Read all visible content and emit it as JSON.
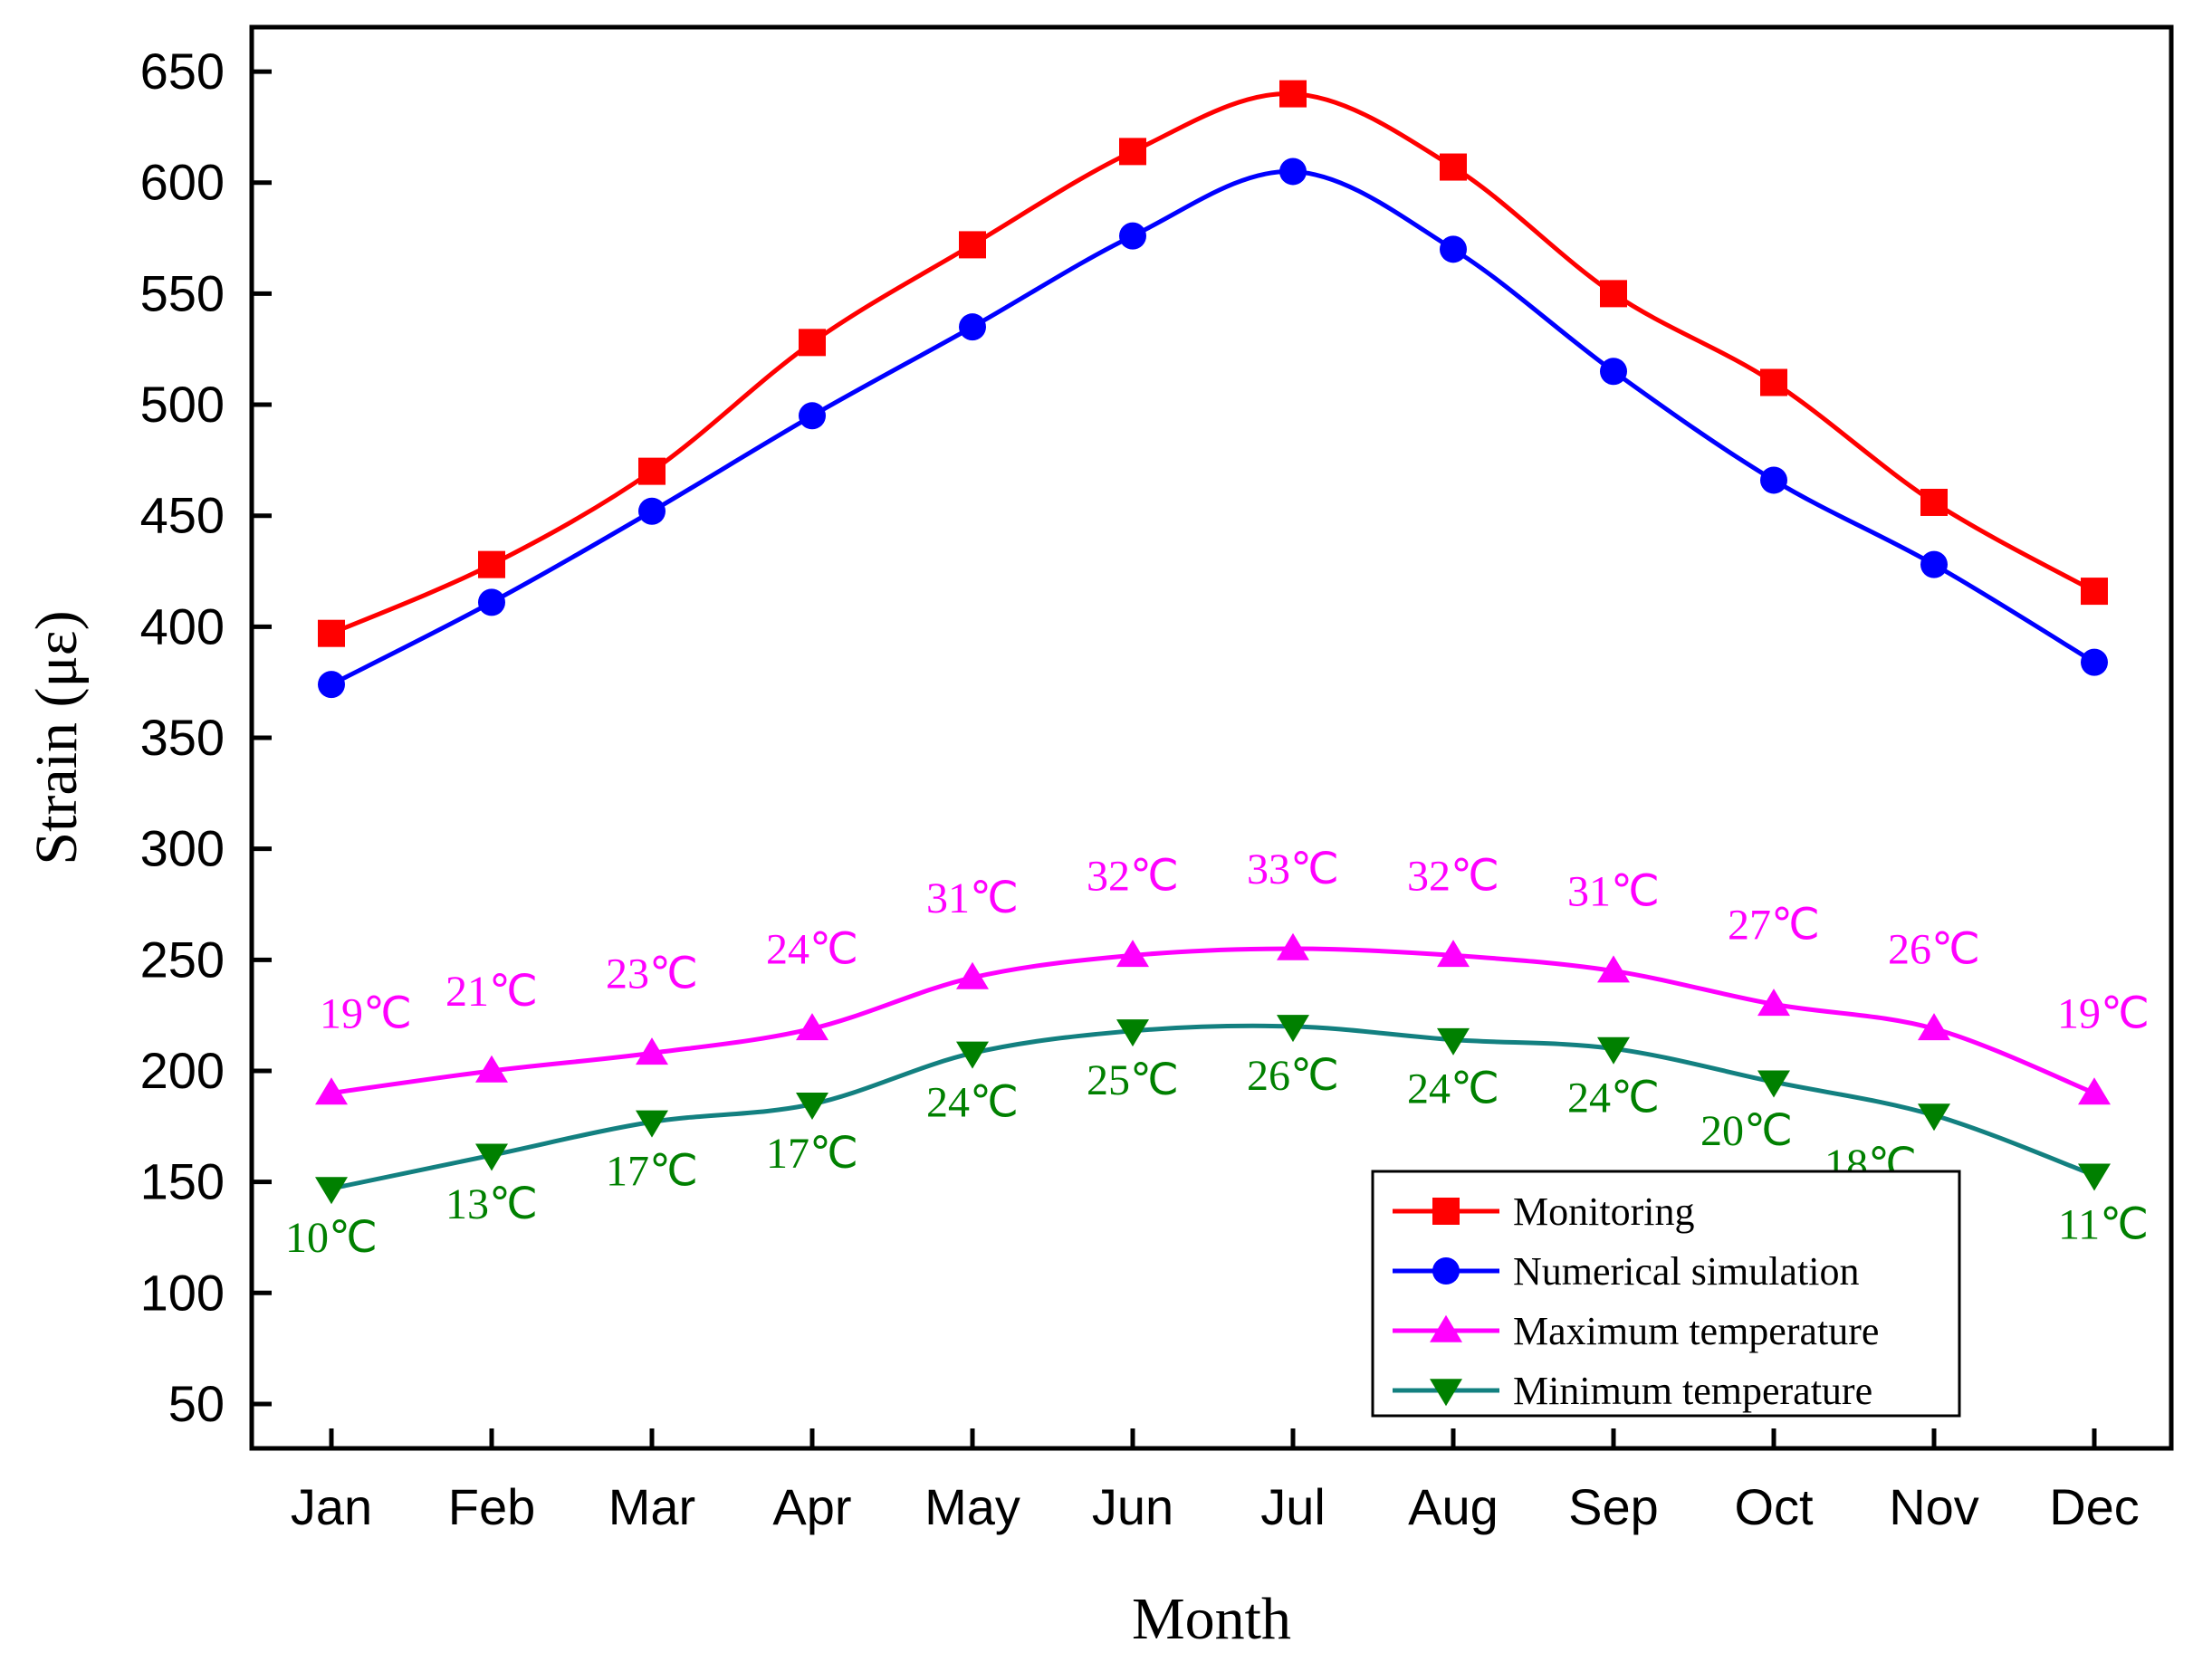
{
  "chart_data": {
    "type": "line",
    "xlabel": "Month",
    "ylabel": "Strain (με)",
    "categories": [
      "Jan",
      "Feb",
      "Mar",
      "Apr",
      "May",
      "Jun",
      "Jul",
      "Aug",
      "Sep",
      "Oct",
      "Nov",
      "Dec"
    ],
    "ylim": [
      30,
      670
    ],
    "yticks": [
      "50",
      "100",
      "150",
      "200",
      "250",
      "300",
      "350",
      "400",
      "450",
      "500",
      "550",
      "600",
      "650"
    ],
    "grid": false,
    "legend_position": "bottom-right",
    "series": [
      {
        "name": "Monitoring",
        "color": "#ff0000",
        "marker": "square",
        "values": [
          397,
          428,
          470,
          528,
          572,
          614,
          640,
          607,
          550,
          510,
          456,
          416
        ]
      },
      {
        "name": "Numerical simulation",
        "color": "#0000ff",
        "marker": "circle",
        "values": [
          374,
          411,
          452,
          495,
          535,
          576,
          605,
          570,
          515,
          466,
          428,
          384
        ]
      },
      {
        "name": "Maximum temperature",
        "color": "#ff00ff",
        "marker": "triangle-up",
        "values": [
          190,
          200,
          208,
          219,
          242,
          252,
          255,
          252,
          245,
          230,
          219,
          190
        ],
        "labels": [
          "19℃",
          "21℃",
          "23℃",
          "24℃",
          "31℃",
          "32℃",
          "33℃",
          "32℃",
          "31℃",
          "27℃",
          "26℃",
          "19℃"
        ]
      },
      {
        "name": "Minimum temperature",
        "color": "#008000",
        "line_color": "#138080",
        "marker": "triangle-down",
        "values": [
          147,
          162,
          177,
          185,
          208,
          218,
          220,
          214,
          210,
          195,
          180,
          153
        ],
        "labels": [
          "10℃",
          "13℃",
          "17℃",
          "17℃",
          "24℃",
          "25℃",
          "26℃",
          "24℃",
          "24℃",
          "20℃",
          "18℃",
          "11℃"
        ]
      }
    ]
  }
}
